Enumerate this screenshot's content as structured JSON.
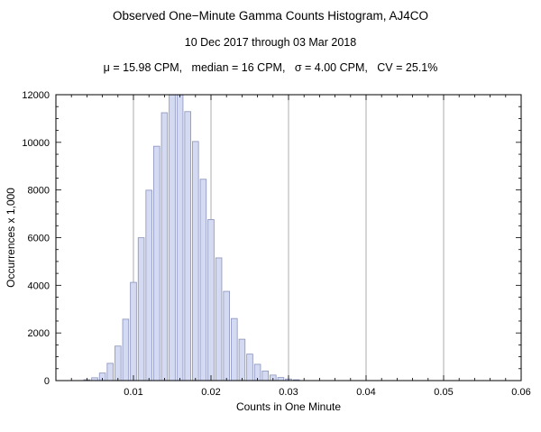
{
  "title": "Observed One−Minute Gamma Counts Histogram, AJ4CO",
  "subtitle": "10 Dec 2017 through 03 Mar 2018",
  "stats_line": "μ = 15.98 CPM,   median = 16 CPM,   σ = 4.00 CPM,   CV = 25.1%",
  "chart_data": {
    "type": "bar",
    "title": "Observed One−Minute Gamma Counts Histogram, AJ4CO",
    "subtitle": "10 Dec 2017 through 03 Mar 2018",
    "annotations": [
      "μ = 15.98 CPM",
      "median = 16 CPM",
      "σ = 4.00 CPM",
      "CV = 25.1%"
    ],
    "xlabel": "Counts in One Minute",
    "ylabel": "Occurrences x 1,000",
    "xlim": [
      0,
      0.06
    ],
    "ylim": [
      0,
      12000
    ],
    "x_ticks": [
      0.01,
      0.02,
      0.03,
      0.04,
      0.05,
      0.06
    ],
    "x_tick_labels": [
      "0.01",
      "0.02",
      "0.03",
      "0.04",
      "0.05",
      "0.06"
    ],
    "x_minor_step": 0.002,
    "y_ticks": [
      0,
      2000,
      4000,
      6000,
      8000,
      10000,
      12000
    ],
    "y_tick_labels": [
      "0",
      "2000",
      "4000",
      "6000",
      "8000",
      "10000",
      "12000"
    ],
    "y_minor_step": 500,
    "bin_width": 0.001,
    "grid": "vertical-major",
    "legend": "none",
    "x": [
      0.004,
      0.005,
      0.006,
      0.007,
      0.008,
      0.009,
      0.01,
      0.011,
      0.012,
      0.013,
      0.014,
      0.015,
      0.016,
      0.017,
      0.018,
      0.019,
      0.02,
      0.021,
      0.022,
      0.023,
      0.024,
      0.025,
      0.026,
      0.027,
      0.028,
      0.029,
      0.03,
      0.031
    ],
    "values": [
      37,
      119,
      317,
      724,
      1449,
      2577,
      4123,
      5997,
      7992,
      9837,
      11243,
      11992,
      11992,
      11290,
      10036,
      8451,
      6759,
      5150,
      3746,
      2606,
      1737,
      1112,
      684,
      405,
      232,
      128,
      68,
      35
    ],
    "bar_fill": "#d4daf1",
    "bar_stroke": "#8a92bd",
    "grid_color": "#8a8a8a",
    "frame_color": "#000000"
  }
}
